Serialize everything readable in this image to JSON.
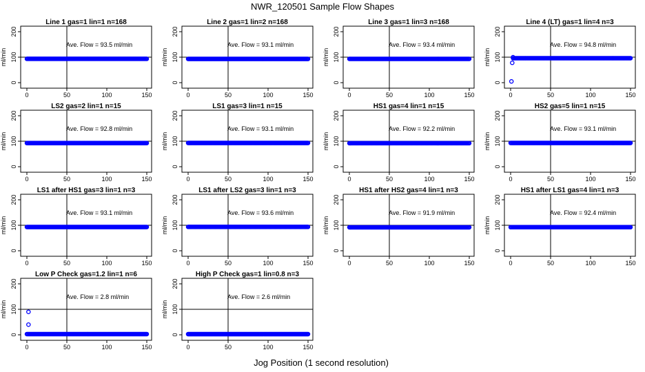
{
  "figure": {
    "title": "NWR_120501  Sample Flow Shapes",
    "xlabel": "Jog Position (1 second resolution)"
  },
  "colors": {
    "points": "#0000ff",
    "axis": "#000000"
  },
  "chart_data": [
    {
      "type": "scatter",
      "title": "Line 1 gas=1 lin=1 n=168",
      "ylabel": "ml/min",
      "xlim": [
        0,
        150
      ],
      "ylim": [
        0,
        200
      ],
      "xticks": [
        0,
        50,
        100,
        150
      ],
      "yticks": [
        0,
        100,
        200
      ],
      "vline": 50,
      "hline": 100,
      "annotation": "Ave. Flow = 93.5  ml/min",
      "series": [
        {
          "x_range": [
            0,
            150
          ],
          "y": 93.5,
          "outliers": []
        }
      ]
    },
    {
      "type": "scatter",
      "title": "Line 2 gas=1 lin=2 n=168",
      "ylabel": "ml/min",
      "xlim": [
        0,
        150
      ],
      "ylim": [
        0,
        200
      ],
      "xticks": [
        0,
        50,
        100,
        150
      ],
      "yticks": [
        0,
        100,
        200
      ],
      "vline": 50,
      "hline": 100,
      "annotation": "Ave. Flow = 93.1  ml/min",
      "series": [
        {
          "x_range": [
            0,
            150
          ],
          "y": 93.1,
          "outliers": []
        }
      ]
    },
    {
      "type": "scatter",
      "title": "Line 3 gas=1 lin=3 n=168",
      "ylabel": "ml/min",
      "xlim": [
        0,
        150
      ],
      "ylim": [
        0,
        200
      ],
      "xticks": [
        0,
        50,
        100,
        150
      ],
      "yticks": [
        0,
        100,
        200
      ],
      "vline": 50,
      "hline": 100,
      "annotation": "Ave. Flow = 93.4  ml/min",
      "series": [
        {
          "x_range": [
            0,
            150
          ],
          "y": 93.4,
          "outliers": []
        }
      ]
    },
    {
      "type": "scatter",
      "title": "Line 4 (LT) gas=1 lin=4 n=3",
      "ylabel": "ml/min",
      "xlim": [
        0,
        150
      ],
      "ylim": [
        0,
        200
      ],
      "xticks": [
        0,
        50,
        100,
        150
      ],
      "yticks": [
        0,
        100,
        200
      ],
      "vline": 50,
      "hline": 100,
      "annotation": "Ave. Flow = 94.8  ml/min",
      "series": [
        {
          "x_range": [
            3,
            150
          ],
          "y": 96,
          "outliers": [
            [
              1,
              5
            ],
            [
              2,
              78
            ],
            [
              3,
              100
            ]
          ]
        }
      ]
    },
    {
      "type": "scatter",
      "title": "LS2 gas=2 lin=1 n=15",
      "ylabel": "ml/min",
      "xlim": [
        0,
        150
      ],
      "ylim": [
        0,
        200
      ],
      "xticks": [
        0,
        50,
        100,
        150
      ],
      "yticks": [
        0,
        100,
        200
      ],
      "vline": 50,
      "hline": 100,
      "annotation": "Ave. Flow = 92.8  ml/min",
      "series": [
        {
          "x_range": [
            0,
            150
          ],
          "y": 92.8,
          "outliers": []
        }
      ]
    },
    {
      "type": "scatter",
      "title": "LS1 gas=3 lin=1 n=15",
      "ylabel": "ml/min",
      "xlim": [
        0,
        150
      ],
      "ylim": [
        0,
        200
      ],
      "xticks": [
        0,
        50,
        100,
        150
      ],
      "yticks": [
        0,
        100,
        200
      ],
      "vline": 50,
      "hline": 100,
      "annotation": "Ave. Flow = 93.1  ml/min",
      "series": [
        {
          "x_range": [
            0,
            150
          ],
          "y": 93.1,
          "outliers": []
        }
      ]
    },
    {
      "type": "scatter",
      "title": "HS1 gas=4 lin=1 n=15",
      "ylabel": "ml/min",
      "xlim": [
        0,
        150
      ],
      "ylim": [
        0,
        200
      ],
      "xticks": [
        0,
        50,
        100,
        150
      ],
      "yticks": [
        0,
        100,
        200
      ],
      "vline": 50,
      "hline": 100,
      "annotation": "Ave. Flow = 92.2  ml/min",
      "series": [
        {
          "x_range": [
            0,
            150
          ],
          "y": 92.2,
          "outliers": []
        }
      ]
    },
    {
      "type": "scatter",
      "title": "HS2 gas=5 lin=1 n=15",
      "ylabel": "ml/min",
      "xlim": [
        0,
        150
      ],
      "ylim": [
        0,
        200
      ],
      "xticks": [
        0,
        50,
        100,
        150
      ],
      "yticks": [
        0,
        100,
        200
      ],
      "vline": 50,
      "hline": 100,
      "annotation": "Ave. Flow = 93.1  ml/min",
      "series": [
        {
          "x_range": [
            0,
            150
          ],
          "y": 93.1,
          "outliers": []
        }
      ]
    },
    {
      "type": "scatter",
      "title": "LS1 after HS1 gas=3 lin=1 n=3",
      "ylabel": "ml/min",
      "xlim": [
        0,
        150
      ],
      "ylim": [
        0,
        200
      ],
      "xticks": [
        0,
        50,
        100,
        150
      ],
      "yticks": [
        0,
        100,
        200
      ],
      "vline": 50,
      "hline": 100,
      "annotation": "Ave. Flow = 93.1  ml/min",
      "series": [
        {
          "x_range": [
            0,
            150
          ],
          "y": 93.1,
          "outliers": []
        }
      ]
    },
    {
      "type": "scatter",
      "title": "LS1 after LS2 gas=3 lin=1 n=3",
      "ylabel": "ml/min",
      "xlim": [
        0,
        150
      ],
      "ylim": [
        0,
        200
      ],
      "xticks": [
        0,
        50,
        100,
        150
      ],
      "yticks": [
        0,
        100,
        200
      ],
      "vline": 50,
      "hline": 100,
      "annotation": "Ave. Flow = 93.6  ml/min",
      "series": [
        {
          "x_range": [
            0,
            150
          ],
          "y": 93.6,
          "outliers": []
        }
      ]
    },
    {
      "type": "scatter",
      "title": "HS1 after HS2 gas=4 lin=1 n=3",
      "ylabel": "ml/min",
      "xlim": [
        0,
        150
      ],
      "ylim": [
        0,
        200
      ],
      "xticks": [
        0,
        50,
        100,
        150
      ],
      "yticks": [
        0,
        100,
        200
      ],
      "vline": 50,
      "hline": 100,
      "annotation": "Ave. Flow = 91.9  ml/min",
      "series": [
        {
          "x_range": [
            0,
            150
          ],
          "y": 91.9,
          "outliers": []
        }
      ]
    },
    {
      "type": "scatter",
      "title": "HS1 after LS1 gas=4 lin=1 n=3",
      "ylabel": "ml/min",
      "xlim": [
        0,
        150
      ],
      "ylim": [
        0,
        200
      ],
      "xticks": [
        0,
        50,
        100,
        150
      ],
      "yticks": [
        0,
        100,
        200
      ],
      "vline": 50,
      "hline": 100,
      "annotation": "Ave. Flow = 92.4  ml/min",
      "series": [
        {
          "x_range": [
            0,
            150
          ],
          "y": 92.4,
          "outliers": []
        }
      ]
    },
    {
      "type": "scatter",
      "title": "Low P Check gas=1.2 lin=1 n=6",
      "ylabel": "ml/min",
      "xlim": [
        0,
        150
      ],
      "ylim": [
        0,
        200
      ],
      "xticks": [
        0,
        50,
        100,
        150
      ],
      "yticks": [
        0,
        100,
        200
      ],
      "vline": 50,
      "hline": 100,
      "annotation": "Ave. Flow = 2.8  ml/min",
      "series": [
        {
          "x_range": [
            0,
            150
          ],
          "y": 2.8,
          "outliers": [
            [
              2,
              90
            ],
            [
              2,
              40
            ]
          ]
        }
      ]
    },
    {
      "type": "scatter",
      "title": "High P Check gas=1 lin=0.8 n=3",
      "ylabel": "ml/min",
      "xlim": [
        0,
        150
      ],
      "ylim": [
        0,
        200
      ],
      "xticks": [
        0,
        50,
        100,
        150
      ],
      "yticks": [
        0,
        100,
        200
      ],
      "vline": 50,
      "hline": 100,
      "annotation": "Ave. Flow = 2.6  ml/min",
      "series": [
        {
          "x_range": [
            0,
            150
          ],
          "y": 2.6,
          "outliers": []
        }
      ]
    }
  ]
}
